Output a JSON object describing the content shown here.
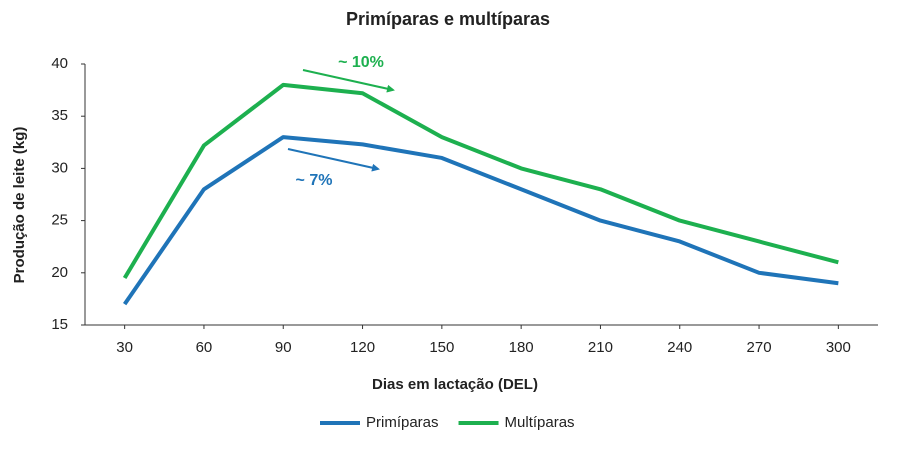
{
  "chart_data": {
    "type": "line",
    "title": "Primíparas e multíparas",
    "x_label": "Dias em lactação (DEL)",
    "y_label": "Produção de leite (kg)",
    "x": [
      30,
      60,
      90,
      120,
      150,
      180,
      210,
      240,
      270,
      300
    ],
    "xlim": [
      15,
      315
    ],
    "xticks": [
      30,
      60,
      90,
      120,
      150,
      180,
      210,
      240,
      270,
      300
    ],
    "ylim": [
      15,
      40
    ],
    "yticks": [
      15,
      20,
      25,
      30,
      35,
      40
    ],
    "grid": false,
    "legend": "bottom",
    "series": [
      {
        "name": "Primíparas",
        "color": "#1f74b8",
        "values": [
          17,
          28,
          33,
          32.3,
          31,
          28,
          25,
          23,
          20,
          19
        ]
      },
      {
        "name": "Multíparas",
        "color": "#1db04f",
        "values": [
          19.5,
          32.2,
          38,
          37.2,
          33,
          30,
          28,
          25,
          23,
          21
        ]
      }
    ],
    "annotations": [
      {
        "text": "~ 10%",
        "color": "#1db04f"
      },
      {
        "text": "~ 7%",
        "color": "#1f74b8"
      }
    ]
  }
}
